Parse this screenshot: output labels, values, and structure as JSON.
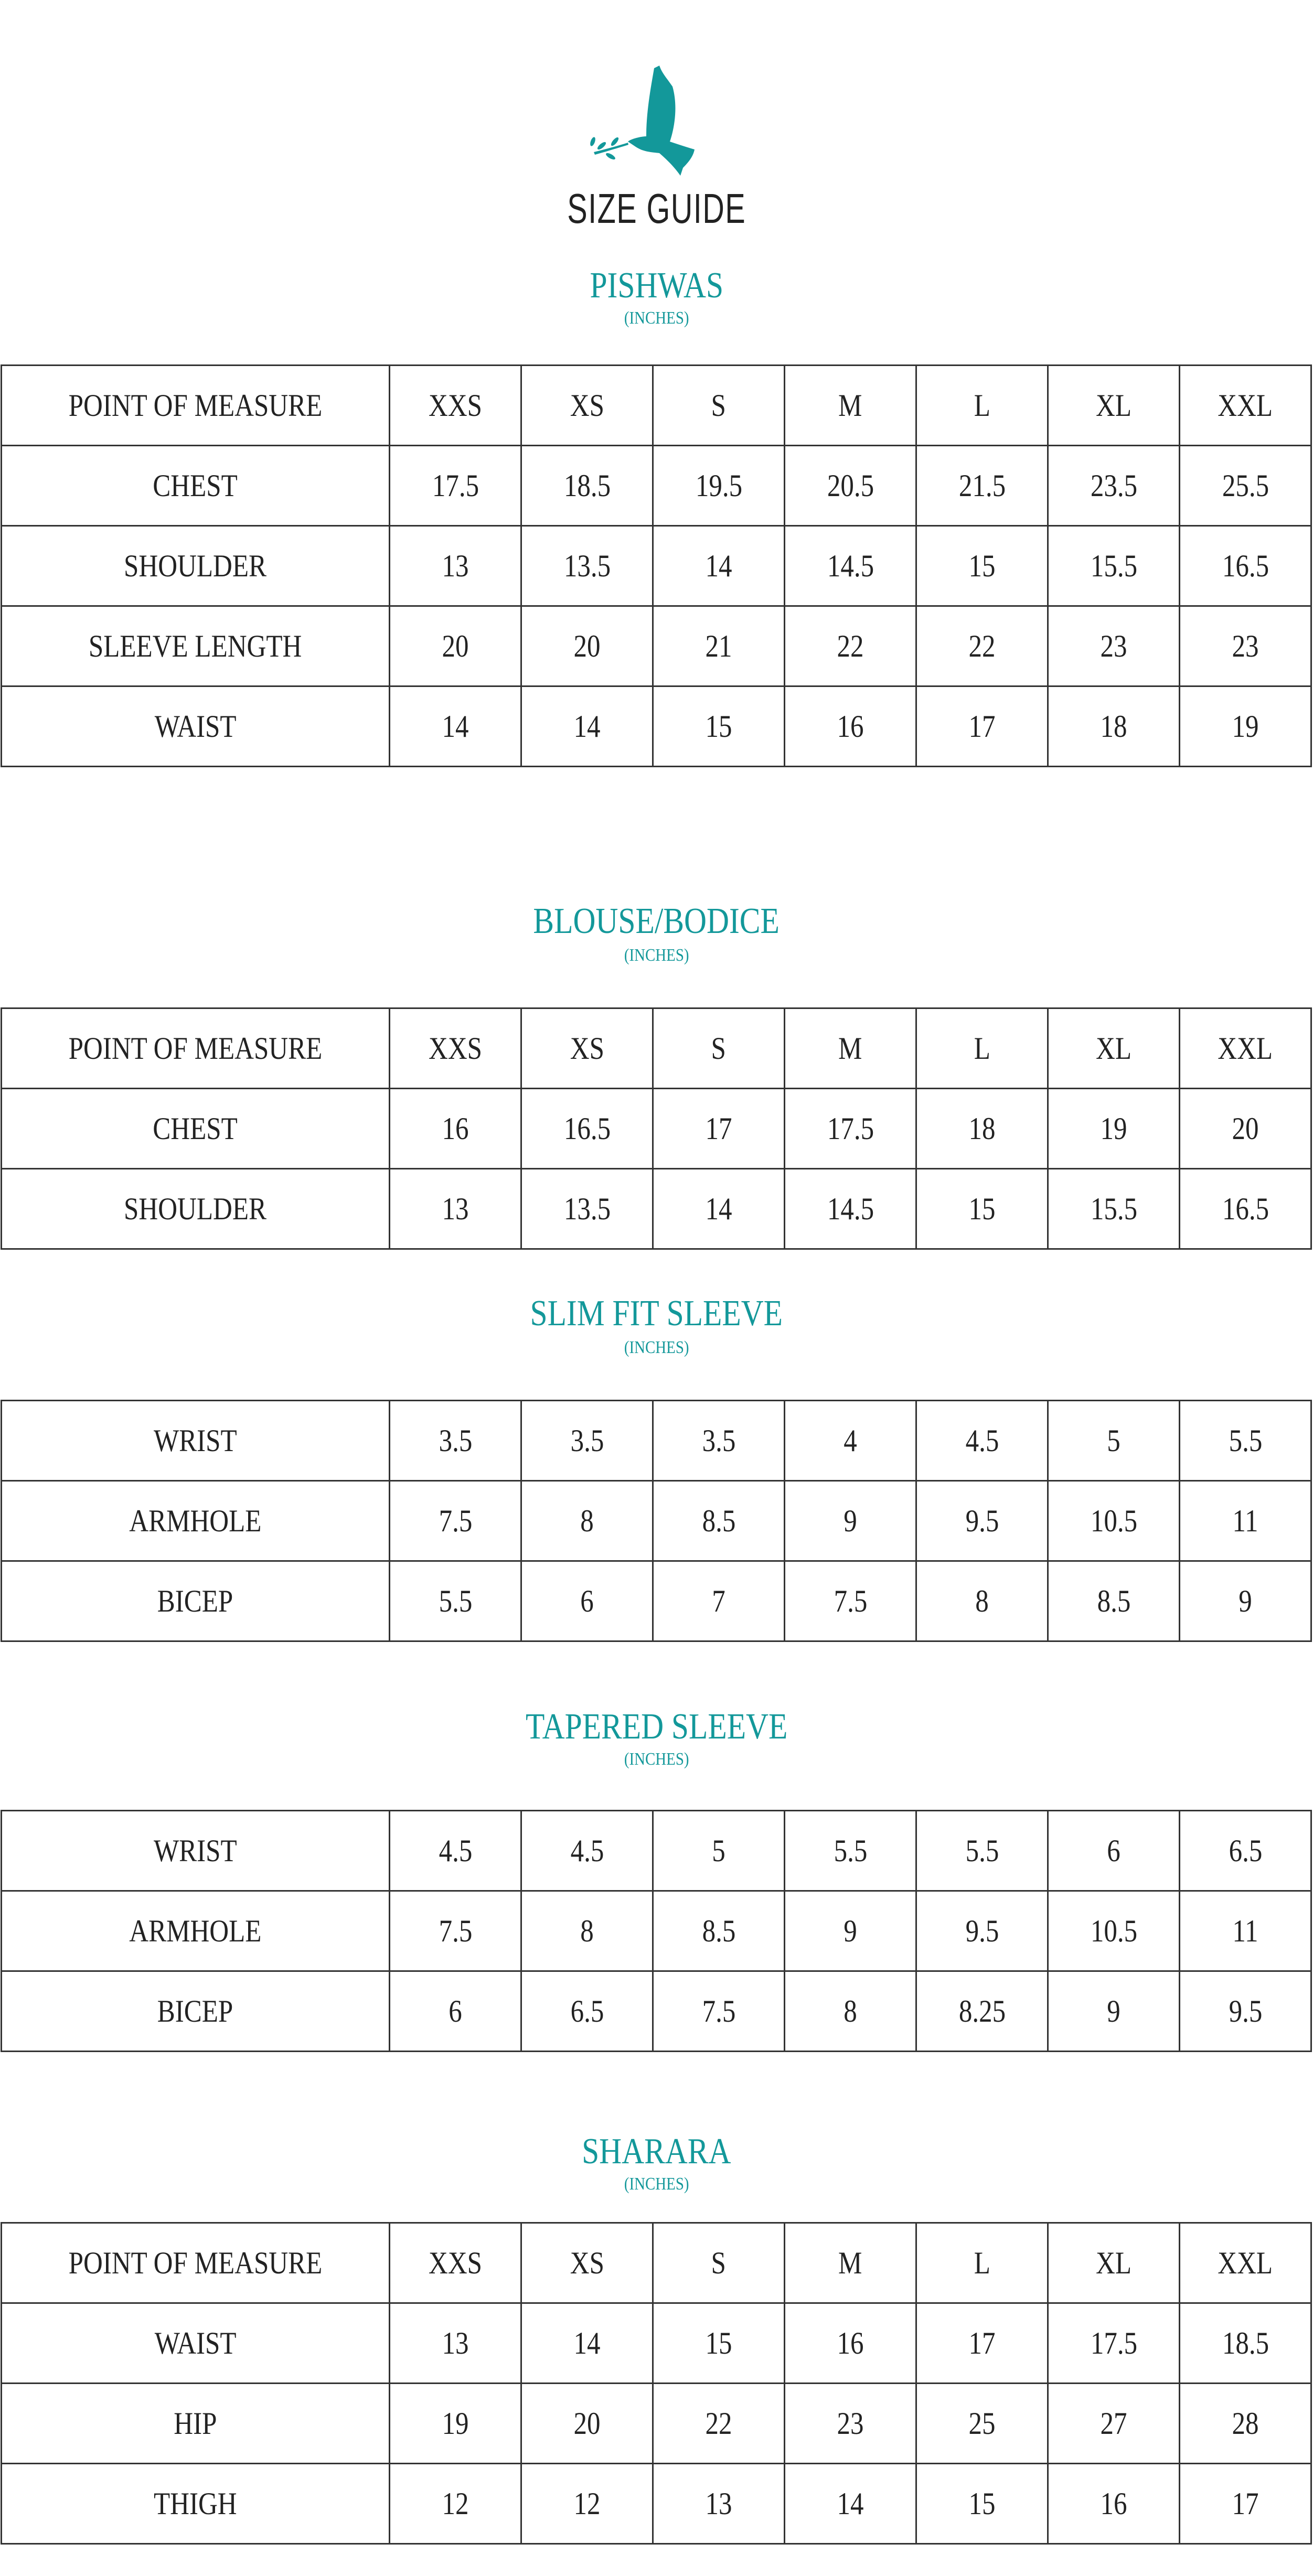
{
  "header": {
    "logo_icon": "dove-with-olive-branch-icon",
    "title": "SIZE GUIDE"
  },
  "colors": {
    "accent": "#13989A",
    "text": "#222222",
    "border": "#333333"
  },
  "sections": [
    {
      "title": "PISHWAS",
      "units": "(INCHES)",
      "header_row": [
        "POINT OF MEASURE",
        "XXS",
        "XS",
        "S",
        "M",
        "L",
        "XL",
        "XXL"
      ],
      "rows": [
        [
          "CHEST",
          "17.5",
          "18.5",
          "19.5",
          "20.5",
          "21.5",
          "23.5",
          "25.5"
        ],
        [
          "SHOULDER",
          "13",
          "13.5",
          "14",
          "14.5",
          "15",
          "15.5",
          "16.5"
        ],
        [
          "SLEEVE LENGTH",
          "20",
          "20",
          "21",
          "22",
          "22",
          "23",
          "23"
        ],
        [
          "WAIST",
          "14",
          "14",
          "15",
          "16",
          "17",
          "18",
          "19"
        ]
      ]
    },
    {
      "title": "BLOUSE/BODICE",
      "units": "(INCHES)",
      "header_row": [
        "POINT OF MEASURE",
        "XXS",
        "XS",
        "S",
        "M",
        "L",
        "XL",
        "XXL"
      ],
      "rows": [
        [
          "CHEST",
          "16",
          "16.5",
          "17",
          "17.5",
          "18",
          "19",
          "20"
        ],
        [
          "SHOULDER",
          "13",
          "13.5",
          "14",
          "14.5",
          "15",
          "15.5",
          "16.5"
        ]
      ]
    },
    {
      "title": "SLIM FIT SLEEVE",
      "units": "(INCHES)",
      "rows": [
        [
          "WRIST",
          "3.5",
          "3.5",
          "3.5",
          "4",
          "4.5",
          "5",
          "5.5"
        ],
        [
          "ARMHOLE",
          "7.5",
          "8",
          "8.5",
          "9",
          "9.5",
          "10.5",
          "11"
        ],
        [
          "BICEP",
          "5.5",
          "6",
          "7",
          "7.5",
          "8",
          "8.5",
          "9"
        ]
      ]
    },
    {
      "title": "TAPERED SLEEVE",
      "units": "(INCHES)",
      "rows": [
        [
          "WRIST",
          "4.5",
          "4.5",
          "5",
          "5.5",
          "5.5",
          "6",
          "6.5"
        ],
        [
          "ARMHOLE",
          "7.5",
          "8",
          "8.5",
          "9",
          "9.5",
          "10.5",
          "11"
        ],
        [
          "BICEP",
          "6",
          "6.5",
          "7.5",
          "8",
          "8.25",
          "9",
          "9.5"
        ]
      ]
    },
    {
      "title": "SHARARA",
      "units": "(INCHES)",
      "header_row": [
        "POINT OF MEASURE",
        "XXS",
        "XS",
        "S",
        "M",
        "L",
        "XL",
        "XXL"
      ],
      "rows": [
        [
          "WAIST",
          "13",
          "14",
          "15",
          "16",
          "17",
          "17.5",
          "18.5"
        ],
        [
          "HIP",
          "19",
          "20",
          "22",
          "23",
          "25",
          "27",
          "28"
        ],
        [
          "THIGH",
          "12",
          "12",
          "13",
          "14",
          "15",
          "16",
          "17"
        ]
      ]
    }
  ]
}
